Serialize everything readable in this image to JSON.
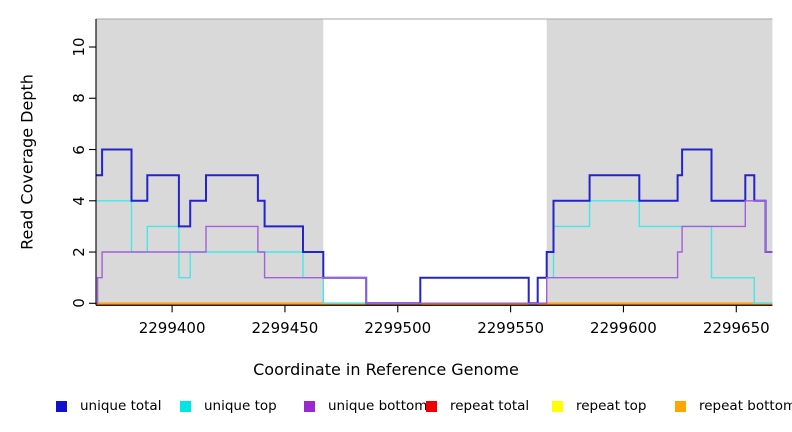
{
  "chart_data": {
    "type": "line",
    "subtype": "step-coverage-plot",
    "title": "",
    "xlabel": "Coordinate in Reference Genome",
    "ylabel": "Read Coverage Depth",
    "xlim": [
      2299366.5,
      2299666
    ],
    "ylim": [
      0,
      11.2
    ],
    "grid": false,
    "x_ticks": [
      2299400,
      2299450,
      2299500,
      2299550,
      2299600,
      2299650
    ],
    "y_ticks": [
      0,
      2,
      4,
      6,
      8,
      10
    ],
    "background_color": "#ffffff",
    "shaded_region_color": "#d9d9d9",
    "shaded_regions": [
      {
        "from": 2299366.5,
        "to": 2299467
      },
      {
        "from": 2299566,
        "to": 2299666
      }
    ],
    "series": [
      {
        "name": "repeat top",
        "color": "#FFFF00",
        "width": 1.4,
        "dy": 1.6,
        "breakpoints": [
          [
            2299366.5,
            0
          ]
        ]
      },
      {
        "name": "repeat total",
        "color": "#EE2222",
        "width": 1.2,
        "dy": 0.8,
        "breakpoints": [
          [
            2299366.5,
            0
          ]
        ]
      },
      {
        "name": "repeat bottom",
        "color": "#FFA519",
        "width": 1.8,
        "dy": 0,
        "breakpoints": [
          [
            2299366.5,
            0
          ]
        ]
      },
      {
        "name": "unique top",
        "color": "#45E8E8",
        "width": 1.4,
        "dy": 0,
        "breakpoints": [
          [
            2299366.5,
            4
          ],
          [
            2299382,
            2
          ],
          [
            2299389,
            3
          ],
          [
            2299403,
            1
          ],
          [
            2299408,
            2
          ],
          [
            2299458,
            1
          ],
          [
            2299467,
            0
          ],
          [
            2299510,
            1
          ],
          [
            2299558,
            0
          ],
          [
            2299562,
            1
          ],
          [
            2299569,
            3
          ],
          [
            2299585,
            4
          ],
          [
            2299607,
            3
          ],
          [
            2299639,
            1
          ],
          [
            2299658,
            0
          ]
        ]
      },
      {
        "name": "unique total",
        "color": "#2424CC",
        "width": 2,
        "dy": 0,
        "breakpoints": [
          [
            2299366.5,
            5
          ],
          [
            2299369,
            6
          ],
          [
            2299382,
            4
          ],
          [
            2299389,
            5
          ],
          [
            2299403,
            3
          ],
          [
            2299408,
            4
          ],
          [
            2299415,
            5
          ],
          [
            2299438,
            4
          ],
          [
            2299441,
            3
          ],
          [
            2299458,
            2
          ],
          [
            2299467,
            1
          ],
          [
            2299486,
            0
          ],
          [
            2299510,
            1
          ],
          [
            2299558,
            0
          ],
          [
            2299562,
            1
          ],
          [
            2299566,
            2
          ],
          [
            2299569,
            4
          ],
          [
            2299585,
            5
          ],
          [
            2299607,
            4
          ],
          [
            2299624,
            5
          ],
          [
            2299626,
            6
          ],
          [
            2299639,
            4
          ],
          [
            2299654,
            5
          ],
          [
            2299658,
            4
          ],
          [
            2299663,
            2
          ]
        ]
      },
      {
        "name": "unique bottom",
        "color": "#A45FD9",
        "width": 1.4,
        "dy": 0,
        "breakpoints": [
          [
            2299366.5,
            0
          ],
          [
            2299367,
            1
          ],
          [
            2299369,
            2
          ],
          [
            2299415,
            3
          ],
          [
            2299438,
            2
          ],
          [
            2299441,
            1
          ],
          [
            2299486,
            0
          ],
          [
            2299566,
            1
          ],
          [
            2299624,
            2
          ],
          [
            2299626,
            3
          ],
          [
            2299654,
            4
          ],
          [
            2299663,
            2
          ]
        ]
      }
    ],
    "legend": [
      {
        "label": "unique total",
        "color": "#1111CC"
      },
      {
        "label": "unique top",
        "color": "#00E5E5"
      },
      {
        "label": "unique bottom",
        "color": "#9929CC"
      },
      {
        "label": "repeat total",
        "color": "#EE0000"
      },
      {
        "label": "repeat top",
        "color": "#FFFF00"
      },
      {
        "label": "repeat bottom",
        "color": "#FFA500"
      }
    ],
    "legend_position": "bottom"
  }
}
